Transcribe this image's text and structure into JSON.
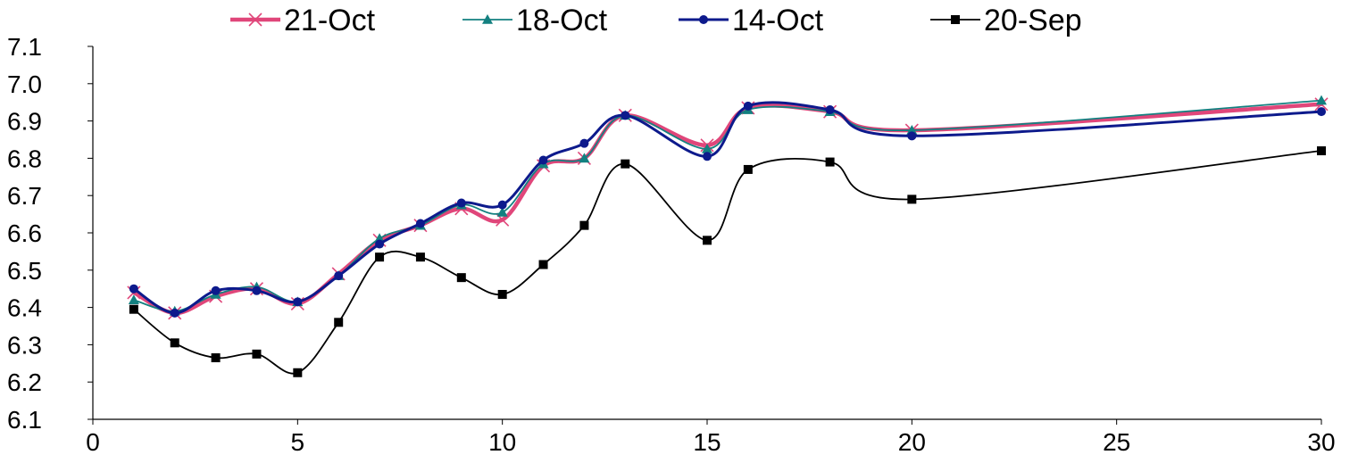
{
  "chart_data": {
    "type": "line",
    "title": "",
    "xlabel": "",
    "ylabel": "",
    "xlim": [
      0,
      30
    ],
    "ylim": [
      6.1,
      7.1
    ],
    "x_ticks": [
      "0",
      "5",
      "10",
      "15",
      "20",
      "25",
      "30"
    ],
    "y_ticks": [
      "6.1",
      "6.2",
      "6.3",
      "6.4",
      "6.5",
      "6.6",
      "6.7",
      "6.8",
      "6.9",
      "7.0",
      "7.1"
    ],
    "grid": false,
    "smooth": true,
    "legend_position": "top",
    "series": [
      {
        "name": "21-Oct",
        "color": "#e0467a",
        "marker": "x",
        "line_width": "thick",
        "x": [
          1,
          2,
          3,
          4,
          5,
          6,
          7,
          8,
          9,
          10,
          11,
          12,
          13,
          15,
          16,
          18,
          20,
          30
        ],
        "y": [
          6.44,
          6.385,
          6.43,
          6.45,
          6.41,
          6.49,
          6.58,
          6.62,
          6.665,
          6.635,
          6.78,
          6.8,
          6.915,
          6.835,
          6.935,
          6.925,
          6.875,
          6.945
        ]
      },
      {
        "name": "18-Oct",
        "color": "#138080",
        "marker": "triangle",
        "line_width": "thin",
        "x": [
          1,
          2,
          3,
          4,
          5,
          6,
          7,
          8,
          9,
          10,
          11,
          12,
          13,
          15,
          16,
          18,
          20,
          30
        ],
        "y": [
          6.42,
          6.39,
          6.435,
          6.455,
          6.415,
          6.485,
          6.585,
          6.62,
          6.675,
          6.655,
          6.785,
          6.8,
          6.915,
          6.825,
          6.93,
          6.925,
          6.875,
          6.955
        ]
      },
      {
        "name": "14-Oct",
        "color": "#0d1a8c",
        "marker": "circle",
        "line_width": "medium",
        "x": [
          1,
          2,
          3,
          4,
          5,
          6,
          7,
          8,
          9,
          10,
          11,
          12,
          13,
          15,
          16,
          18,
          20,
          30
        ],
        "y": [
          6.45,
          6.385,
          6.445,
          6.445,
          6.415,
          6.485,
          6.57,
          6.625,
          6.68,
          6.675,
          6.795,
          6.84,
          6.915,
          6.805,
          6.94,
          6.93,
          6.86,
          6.925
        ]
      },
      {
        "name": "20-Sep",
        "color": "#000000",
        "marker": "square",
        "line_width": "thin",
        "x": [
          1,
          2,
          3,
          4,
          5,
          6,
          7,
          8,
          9,
          10,
          11,
          12,
          13,
          15,
          16,
          18,
          20,
          30
        ],
        "y": [
          6.395,
          6.305,
          6.265,
          6.275,
          6.225,
          6.36,
          6.535,
          6.535,
          6.48,
          6.435,
          6.515,
          6.62,
          6.785,
          6.58,
          6.77,
          6.79,
          6.69,
          6.82
        ]
      }
    ]
  }
}
